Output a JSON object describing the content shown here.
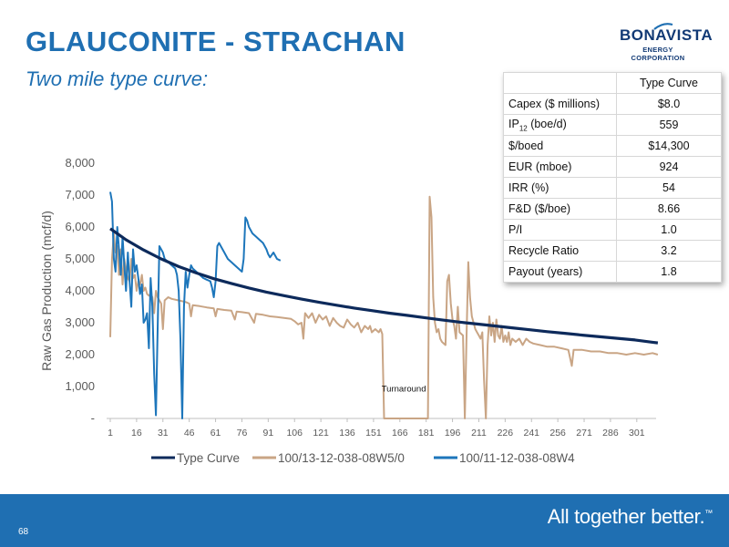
{
  "slide": {
    "title": "GLAUCONITE - STRACHAN",
    "subtitle": "Two mile type curve:",
    "page_number": "68",
    "tagline": "All together better.",
    "tagline_tm": "™"
  },
  "logo": {
    "name": "BONAVISTA",
    "subtitle": "ENERGY CORPORATION"
  },
  "table": {
    "header": "Type Curve",
    "rows": [
      {
        "label": "Capex ($ millions)",
        "value": "$8.0"
      },
      {
        "label": "IP12 (boe/d)",
        "label_main": "IP",
        "label_sub": "12",
        "label_rest": " (boe/d)",
        "value": "559"
      },
      {
        "label": "$/boed",
        "value": "$14,300"
      },
      {
        "label": "EUR (mboe)",
        "value": "924"
      },
      {
        "label": "IRR (%)",
        "value": "54"
      },
      {
        "label": "F&D ($/boe)",
        "value": "8.66"
      },
      {
        "label": "P/I",
        "value": "1.0"
      },
      {
        "label": "Recycle Ratio",
        "value": "3.2"
      },
      {
        "label": "Payout (years)",
        "value": "1.8"
      }
    ]
  },
  "chart_data": {
    "type": "line",
    "ylabel": "Raw Gas Production (mcf/d)",
    "xlabel": "",
    "ylim": [
      0,
      8000
    ],
    "yticks": [
      0,
      1000,
      2000,
      3000,
      4000,
      5000,
      6000,
      7000,
      8000
    ],
    "ytick_labels": [
      "-",
      "1,000",
      "2,000",
      "3,000",
      "4,000",
      "5,000",
      "6,000",
      "7,000",
      "8,000"
    ],
    "xlim": [
      1,
      312
    ],
    "xticks": [
      1,
      16,
      31,
      46,
      61,
      76,
      91,
      106,
      121,
      136,
      151,
      166,
      181,
      196,
      211,
      226,
      241,
      256,
      271,
      286,
      301
    ],
    "annotation": {
      "text": "Turnaround",
      "x": 167,
      "y": 900
    },
    "legend_position": "bottom",
    "series": [
      {
        "name": "Type Curve",
        "color": "#0d2a5b",
        "points": [
          [
            1,
            5950
          ],
          [
            10,
            5600
          ],
          [
            20,
            5280
          ],
          [
            30,
            5000
          ],
          [
            40,
            4760
          ],
          [
            50,
            4560
          ],
          [
            60,
            4380
          ],
          [
            70,
            4230
          ],
          [
            80,
            4090
          ],
          [
            90,
            3960
          ],
          [
            100,
            3850
          ],
          [
            110,
            3740
          ],
          [
            120,
            3640
          ],
          [
            130,
            3550
          ],
          [
            140,
            3460
          ],
          [
            150,
            3380
          ],
          [
            160,
            3300
          ],
          [
            170,
            3230
          ],
          [
            180,
            3160
          ],
          [
            190,
            3090
          ],
          [
            200,
            3020
          ],
          [
            210,
            2960
          ],
          [
            220,
            2900
          ],
          [
            230,
            2840
          ],
          [
            240,
            2780
          ],
          [
            250,
            2720
          ],
          [
            260,
            2670
          ],
          [
            270,
            2610
          ],
          [
            280,
            2560
          ],
          [
            290,
            2510
          ],
          [
            300,
            2460
          ],
          [
            310,
            2390
          ],
          [
            313,
            2370
          ]
        ]
      },
      {
        "name": "100/13-12-038-08W5/0",
        "color": "#c9a585",
        "points": [
          [
            1,
            2550
          ],
          [
            2,
            5000
          ],
          [
            3,
            5800
          ],
          [
            4,
            5200
          ],
          [
            5,
            5400
          ],
          [
            6,
            4500
          ],
          [
            7,
            5300
          ],
          [
            8,
            4200
          ],
          [
            9,
            5000
          ],
          [
            10,
            4600
          ],
          [
            11,
            4400
          ],
          [
            12,
            4300
          ],
          [
            13,
            5000
          ],
          [
            14,
            4400
          ],
          [
            15,
            4500
          ],
          [
            16,
            4000
          ],
          [
            17,
            4300
          ],
          [
            18,
            4200
          ],
          [
            19,
            4500
          ],
          [
            20,
            4000
          ],
          [
            21,
            4100
          ],
          [
            22,
            3900
          ],
          [
            23,
            3850
          ],
          [
            24,
            3900
          ],
          [
            25,
            3800
          ],
          [
            26,
            3300
          ],
          [
            27,
            4000
          ],
          [
            28,
            3800
          ],
          [
            29,
            3700
          ],
          [
            30,
            3600
          ],
          [
            31,
            2800
          ],
          [
            32,
            3700
          ],
          [
            34,
            3800
          ],
          [
            36,
            3750
          ],
          [
            40,
            3700
          ],
          [
            44,
            3650
          ],
          [
            46,
            3600
          ],
          [
            47,
            3200
          ],
          [
            48,
            3550
          ],
          [
            52,
            3520
          ],
          [
            56,
            3480
          ],
          [
            60,
            3450
          ],
          [
            61,
            3200
          ],
          [
            62,
            3430
          ],
          [
            66,
            3400
          ],
          [
            70,
            3380
          ],
          [
            72,
            3100
          ],
          [
            73,
            3350
          ],
          [
            76,
            3330
          ],
          [
            80,
            3300
          ],
          [
            83,
            3000
          ],
          [
            84,
            3280
          ],
          [
            88,
            3250
          ],
          [
            92,
            3200
          ],
          [
            96,
            3180
          ],
          [
            100,
            3150
          ],
          [
            104,
            3120
          ],
          [
            106,
            3050
          ],
          [
            108,
            2950
          ],
          [
            110,
            3000
          ],
          [
            111,
            2500
          ],
          [
            112,
            3300
          ],
          [
            114,
            3150
          ],
          [
            116,
            3300
          ],
          [
            118,
            3000
          ],
          [
            120,
            3250
          ],
          [
            122,
            3100
          ],
          [
            124,
            3200
          ],
          [
            126,
            2900
          ],
          [
            128,
            3150
          ],
          [
            130,
            3000
          ],
          [
            132,
            2900
          ],
          [
            134,
            2850
          ],
          [
            136,
            3100
          ],
          [
            138,
            2950
          ],
          [
            140,
            2850
          ],
          [
            142,
            3000
          ],
          [
            144,
            2700
          ],
          [
            146,
            2900
          ],
          [
            148,
            2800
          ],
          [
            149,
            2900
          ],
          [
            150,
            2700
          ],
          [
            152,
            2800
          ],
          [
            154,
            2700
          ],
          [
            155,
            2800
          ],
          [
            156,
            2650
          ],
          [
            157,
            0
          ],
          [
            160,
            0
          ],
          [
            170,
            0
          ],
          [
            182,
            0
          ],
          [
            183,
            6950
          ],
          [
            184,
            6300
          ],
          [
            185,
            3800
          ],
          [
            186,
            3000
          ],
          [
            187,
            2700
          ],
          [
            188,
            2800
          ],
          [
            189,
            2500
          ],
          [
            190,
            2400
          ],
          [
            192,
            2300
          ],
          [
            193,
            4300
          ],
          [
            194,
            4500
          ],
          [
            195,
            3600
          ],
          [
            196,
            3100
          ],
          [
            197,
            2900
          ],
          [
            198,
            2500
          ],
          [
            199,
            3500
          ],
          [
            200,
            2700
          ],
          [
            202,
            2600
          ],
          [
            203,
            0
          ],
          [
            204,
            2600
          ],
          [
            205,
            4900
          ],
          [
            206,
            3800
          ],
          [
            207,
            3200
          ],
          [
            208,
            3000
          ],
          [
            209,
            2800
          ],
          [
            210,
            2700
          ],
          [
            211,
            2600
          ],
          [
            212,
            2500
          ],
          [
            213,
            2700
          ],
          [
            214,
            1200
          ],
          [
            215,
            0
          ],
          [
            216,
            2300
          ],
          [
            217,
            3200
          ],
          [
            218,
            2600
          ],
          [
            219,
            3000
          ],
          [
            220,
            2400
          ],
          [
            221,
            3100
          ],
          [
            222,
            2600
          ],
          [
            223,
            2500
          ],
          [
            224,
            2900
          ],
          [
            225,
            2400
          ],
          [
            226,
            2600
          ],
          [
            227,
            2400
          ],
          [
            228,
            2700
          ],
          [
            229,
            2300
          ],
          [
            230,
            2500
          ],
          [
            232,
            2400
          ],
          [
            234,
            2500
          ],
          [
            236,
            2300
          ],
          [
            238,
            2500
          ],
          [
            240,
            2400
          ],
          [
            242,
            2350
          ],
          [
            246,
            2300
          ],
          [
            250,
            2250
          ],
          [
            254,
            2250
          ],
          [
            258,
            2200
          ],
          [
            262,
            2150
          ],
          [
            264,
            1650
          ],
          [
            265,
            2150
          ],
          [
            270,
            2150
          ],
          [
            275,
            2100
          ],
          [
            280,
            2100
          ],
          [
            285,
            2050
          ],
          [
            290,
            2050
          ],
          [
            295,
            2000
          ],
          [
            300,
            2050
          ],
          [
            305,
            2000
          ],
          [
            310,
            2050
          ],
          [
            313,
            2000
          ]
        ]
      },
      {
        "name": "100/11-12-038-08W4",
        "color": "#1d76bb",
        "points": [
          [
            1,
            7100
          ],
          [
            2,
            6800
          ],
          [
            3,
            5000
          ],
          [
            4,
            4600
          ],
          [
            5,
            6000
          ],
          [
            6,
            5300
          ],
          [
            7,
            4500
          ],
          [
            8,
            5700
          ],
          [
            9,
            4800
          ],
          [
            10,
            4000
          ],
          [
            11,
            5200
          ],
          [
            12,
            4300
          ],
          [
            13,
            3500
          ],
          [
            14,
            5300
          ],
          [
            15,
            4600
          ],
          [
            16,
            4800
          ],
          [
            17,
            4400
          ],
          [
            18,
            3900
          ],
          [
            19,
            4200
          ],
          [
            20,
            3000
          ],
          [
            21,
            3100
          ],
          [
            22,
            3300
          ],
          [
            23,
            2200
          ],
          [
            24,
            4400
          ],
          [
            25,
            3500
          ],
          [
            26,
            1400
          ],
          [
            27,
            100
          ],
          [
            28,
            2800
          ],
          [
            29,
            5400
          ],
          [
            30,
            5300
          ],
          [
            31,
            5200
          ],
          [
            32,
            5000
          ],
          [
            34,
            4900
          ],
          [
            36,
            4800
          ],
          [
            38,
            4700
          ],
          [
            39,
            4500
          ],
          [
            40,
            4000
          ],
          [
            41,
            2500
          ],
          [
            42,
            0
          ],
          [
            43,
            3500
          ],
          [
            44,
            4600
          ],
          [
            45,
            4100
          ],
          [
            46,
            4500
          ],
          [
            47,
            4800
          ],
          [
            48,
            4700
          ],
          [
            50,
            4600
          ],
          [
            52,
            4500
          ],
          [
            54,
            4400
          ],
          [
            56,
            4350
          ],
          [
            58,
            4300
          ],
          [
            59,
            4100
          ],
          [
            60,
            3800
          ],
          [
            61,
            4300
          ],
          [
            62,
            5400
          ],
          [
            63,
            5500
          ],
          [
            64,
            5400
          ],
          [
            66,
            5200
          ],
          [
            68,
            5000
          ],
          [
            70,
            4900
          ],
          [
            72,
            4800
          ],
          [
            74,
            4700
          ],
          [
            76,
            4600
          ],
          [
            77,
            5000
          ],
          [
            78,
            6300
          ],
          [
            79,
            6200
          ],
          [
            80,
            6000
          ],
          [
            82,
            5800
          ],
          [
            84,
            5700
          ],
          [
            86,
            5600
          ],
          [
            88,
            5500
          ],
          [
            90,
            5300
          ],
          [
            91,
            5150
          ],
          [
            92,
            5050
          ],
          [
            94,
            5200
          ],
          [
            96,
            5000
          ],
          [
            98,
            4950
          ]
        ]
      }
    ]
  }
}
